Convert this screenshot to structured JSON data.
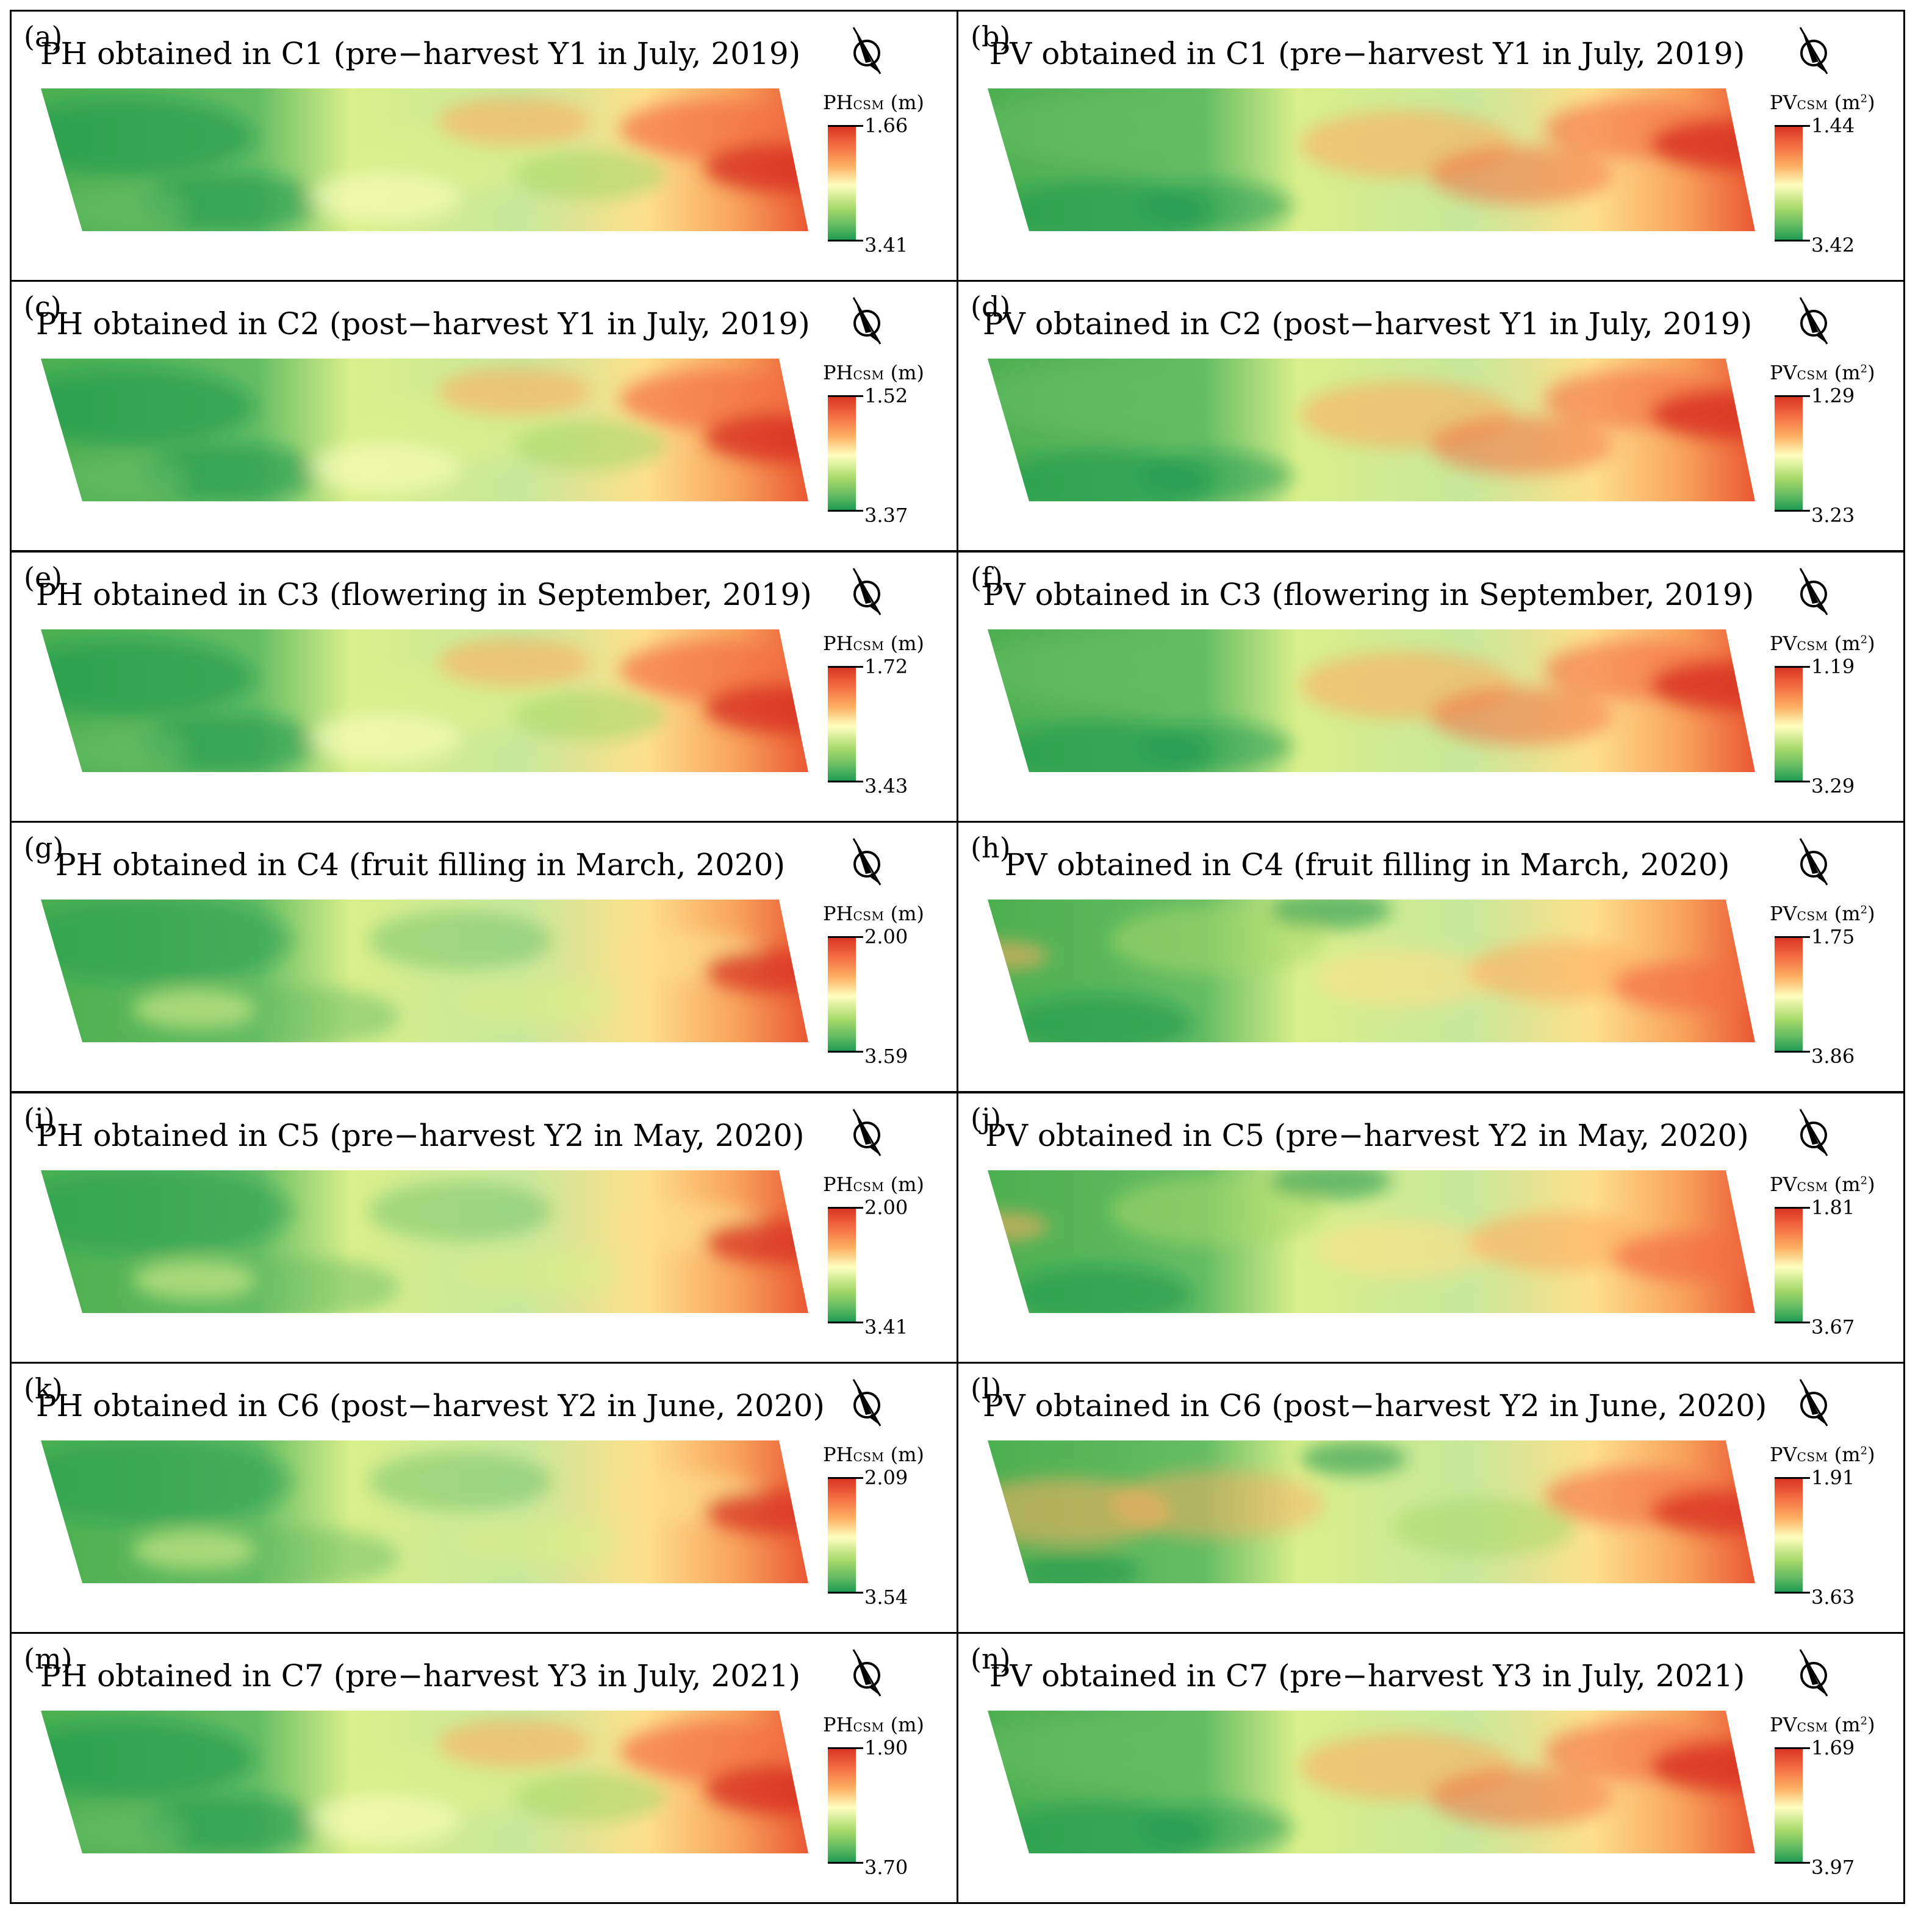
{
  "figure": {
    "panels": [
      {
        "letter": "(a)",
        "title": "PH obtained in C1 (pre−harvest Y1 in July, 2019)",
        "unit_main": "PH",
        "unit_sub": "CSM",
        "unit": "(m)",
        "unit_sup": "",
        "max": "1.66",
        "min": "3.41",
        "pattern": "ph1",
        "icon": "north-arrow-icon"
      },
      {
        "letter": "(b)",
        "title": "PV obtained in C1 (pre−harvest Y1 in July, 2019)",
        "unit_main": "PV",
        "unit_sub": "CSM",
        "unit": "(m",
        "unit_sup": "2",
        "max": "1.44",
        "min": "3.42",
        "pattern": "pv1",
        "icon": "north-arrow-icon"
      },
      {
        "letter": "(c)",
        "title": "PH obtained in C2 (post−harvest Y1 in July, 2019)",
        "unit_main": "PH",
        "unit_sub": "CSM",
        "unit": "(m)",
        "unit_sup": "",
        "max": "1.52",
        "min": "3.37",
        "pattern": "ph1",
        "icon": "north-arrow-icon"
      },
      {
        "letter": "(d)",
        "title": "PV obtained in C2 (post−harvest Y1 in July, 2019)",
        "unit_main": "PV",
        "unit_sub": "CSM",
        "unit": "(m",
        "unit_sup": "2",
        "max": "1.29",
        "min": "3.23",
        "pattern": "pv1",
        "icon": "north-arrow-icon"
      },
      {
        "letter": "(e)",
        "title": "PH obtained in C3 (flowering in September, 2019)",
        "unit_main": "PH",
        "unit_sub": "CSM",
        "unit": "(m)",
        "unit_sup": "",
        "max": "1.72",
        "min": "3.43",
        "pattern": "ph1",
        "icon": "north-arrow-icon"
      },
      {
        "letter": "(f)",
        "title": "PV obtained in C3 (flowering  in September, 2019)",
        "unit_main": "PV",
        "unit_sub": "CSM",
        "unit": "(m",
        "unit_sup": "2",
        "max": "1.19",
        "min": "3.29",
        "pattern": "pv1",
        "icon": "north-arrow-icon"
      },
      {
        "letter": "(g)",
        "title": "PH obtained in C4 (fruit filling in March, 2020)",
        "unit_main": "PH",
        "unit_sub": "CSM",
        "unit": "(m)",
        "unit_sup": "",
        "max": "2.00",
        "min": "3.59",
        "pattern": "ph2",
        "icon": "north-arrow-icon"
      },
      {
        "letter": "(h)",
        "title": "PV obtained in C4 (fruit filling in March, 2020)",
        "unit_main": "PV",
        "unit_sub": "CSM",
        "unit": "(m",
        "unit_sup": "2",
        "max": "1.75",
        "min": "3.86",
        "pattern": "pv2",
        "icon": "north-arrow-icon"
      },
      {
        "letter": "(i)",
        "title": "PH obtained in C5 (pre−harvest Y2 in May, 2020)",
        "unit_main": "PH",
        "unit_sub": "CSM",
        "unit": "(m)",
        "unit_sup": "",
        "max": "2.00",
        "min": "3.41",
        "pattern": "ph2",
        "icon": "north-arrow-icon"
      },
      {
        "letter": "(j)",
        "title": "PV obtained in C5 (pre−harvest Y2 in May, 2020)",
        "unit_main": "PV",
        "unit_sub": "CSM",
        "unit": "(m",
        "unit_sup": "2",
        "max": "1.81",
        "min": "3.67",
        "pattern": "pv2",
        "icon": "north-arrow-icon"
      },
      {
        "letter": "(k)",
        "title": "PH obtained in C6 (post−harvest Y2 in June, 2020)",
        "unit_main": "PH",
        "unit_sub": "CSM",
        "unit": "(m)",
        "unit_sup": "",
        "max": "2.09",
        "min": "3.54",
        "pattern": "ph2",
        "icon": "north-arrow-icon"
      },
      {
        "letter": "(l)",
        "title": "PV obtained in C6 (post−harvest Y2 in June, 2020)",
        "unit_main": "PV",
        "unit_sub": "CSM",
        "unit": "(m",
        "unit_sup": "2",
        "max": "1.91",
        "min": "3.63",
        "pattern": "pv3",
        "icon": "north-arrow-icon"
      },
      {
        "letter": "(m)",
        "title": "PH obtained in C7 (pre−harvest Y3 in July, 2021)",
        "unit_main": "PH",
        "unit_sub": "CSM",
        "unit": "(m)",
        "unit_sup": "",
        "max": "1.90",
        "min": "3.70",
        "pattern": "ph1",
        "icon": "north-arrow-icon"
      },
      {
        "letter": "(n)",
        "title": "PV obtained in C7 (pre−harvest Y3 in July, 2021)",
        "unit_main": "PV",
        "unit_sub": "CSM",
        "unit": "(m",
        "unit_sup": "2",
        "max": "1.69",
        "min": "3.97",
        "pattern": "pv1",
        "icon": "north-arrow-icon"
      }
    ],
    "colors": {
      "high": "#d7301f",
      "mid": "#ffffbf",
      "low": "#1a9850",
      "border": "#000000"
    }
  }
}
